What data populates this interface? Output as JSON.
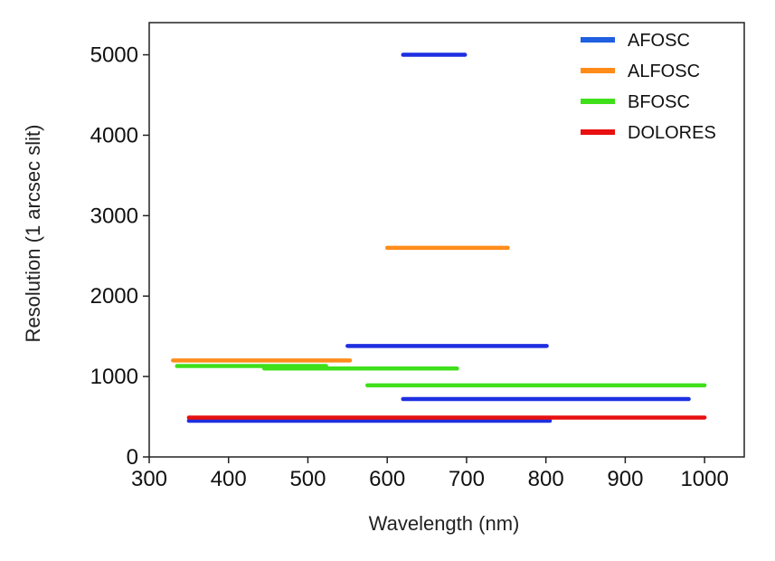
{
  "chart_data": {
    "type": "line",
    "title": "",
    "xlabel": "Wavelength (nm)",
    "ylabel": "Resolution (1 arcsec slit)",
    "xlim": [
      300,
      1050
    ],
    "ylim": [
      0,
      5400
    ],
    "xticks": [
      300,
      400,
      500,
      600,
      700,
      800,
      900,
      1000
    ],
    "yticks": [
      0,
      1000,
      2000,
      3000,
      4000,
      5000
    ],
    "grid": false,
    "legend": "top-right",
    "series": [
      {
        "name": "AFOSC",
        "color": "#1e2fe0",
        "legend_color": "#1f5fe0",
        "segments": [
          {
            "x": [
              620,
              698
            ],
            "y": 5000
          },
          {
            "x": [
              550,
              801
            ],
            "y": 1380
          },
          {
            "x": [
              620,
              980
            ],
            "y": 720
          },
          {
            "x": [
              350,
              805
            ],
            "y": 450
          }
        ]
      },
      {
        "name": "ALFOSC",
        "color": "#ff8c1a",
        "legend_color": "#ff8c1a",
        "segments": [
          {
            "x": [
              600,
              752
            ],
            "y": 2600
          },
          {
            "x": [
              330,
              553
            ],
            "y": 1200
          }
        ]
      },
      {
        "name": "BFOSC",
        "color": "#3fe01a",
        "legend_color": "#3fe01a",
        "segments": [
          {
            "x": [
              335,
              523
            ],
            "y": 1130
          },
          {
            "x": [
              445,
              688
            ],
            "y": 1100
          },
          {
            "x": [
              575,
              1000
            ],
            "y": 890
          }
        ]
      },
      {
        "name": "DOLORES",
        "color": "#e81010",
        "legend_color": "#e81010",
        "segments": [
          {
            "x": [
              350,
              1000
            ],
            "y": 490
          }
        ]
      }
    ]
  }
}
